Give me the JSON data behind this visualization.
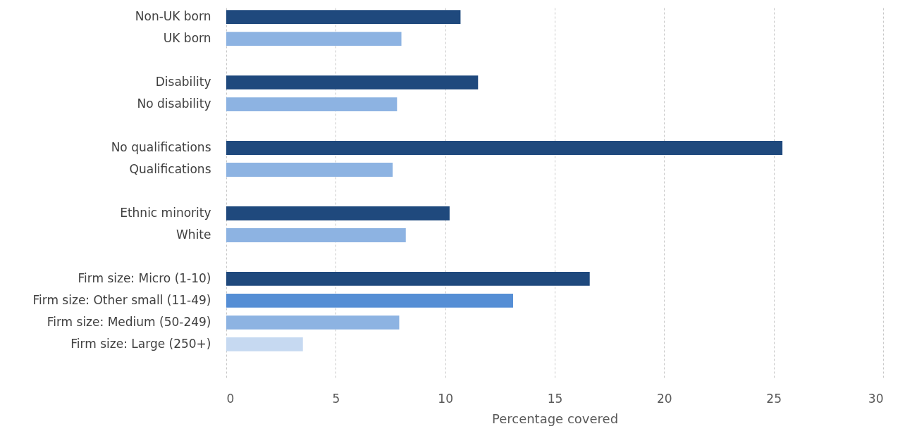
{
  "chart_data": {
    "type": "bar",
    "orientation": "horizontal",
    "categories": [
      "Non-UK born",
      "UK born",
      null,
      "Disability",
      "No disability",
      null,
      "No qualifications",
      "Qualifications",
      null,
      "Ethnic minority",
      "White",
      null,
      "Firm size: Micro (1-10)",
      "Firm size: Other small (11-49)",
      "Firm size: Medium (50-249)",
      "Firm size: Large (250+)",
      null
    ],
    "values": [
      10.7,
      8.0,
      null,
      11.5,
      7.8,
      null,
      25.4,
      7.6,
      null,
      10.2,
      8.2,
      null,
      16.6,
      13.1,
      7.9,
      3.5,
      null
    ],
    "colors": [
      "#1f497d",
      "#8db3e2",
      null,
      "#1f497d",
      "#8db3e2",
      null,
      "#1f497d",
      "#8db3e2",
      null,
      "#1f497d",
      "#8db3e2",
      null,
      "#1f497d",
      "#558ed5",
      "#8db3e2",
      "#c6d9f1",
      null
    ],
    "xlabel": "Percentage covered",
    "xlim": [
      0,
      30
    ],
    "xticks": [
      0,
      5,
      10,
      15,
      20,
      25,
      30
    ],
    "grid": true
  }
}
